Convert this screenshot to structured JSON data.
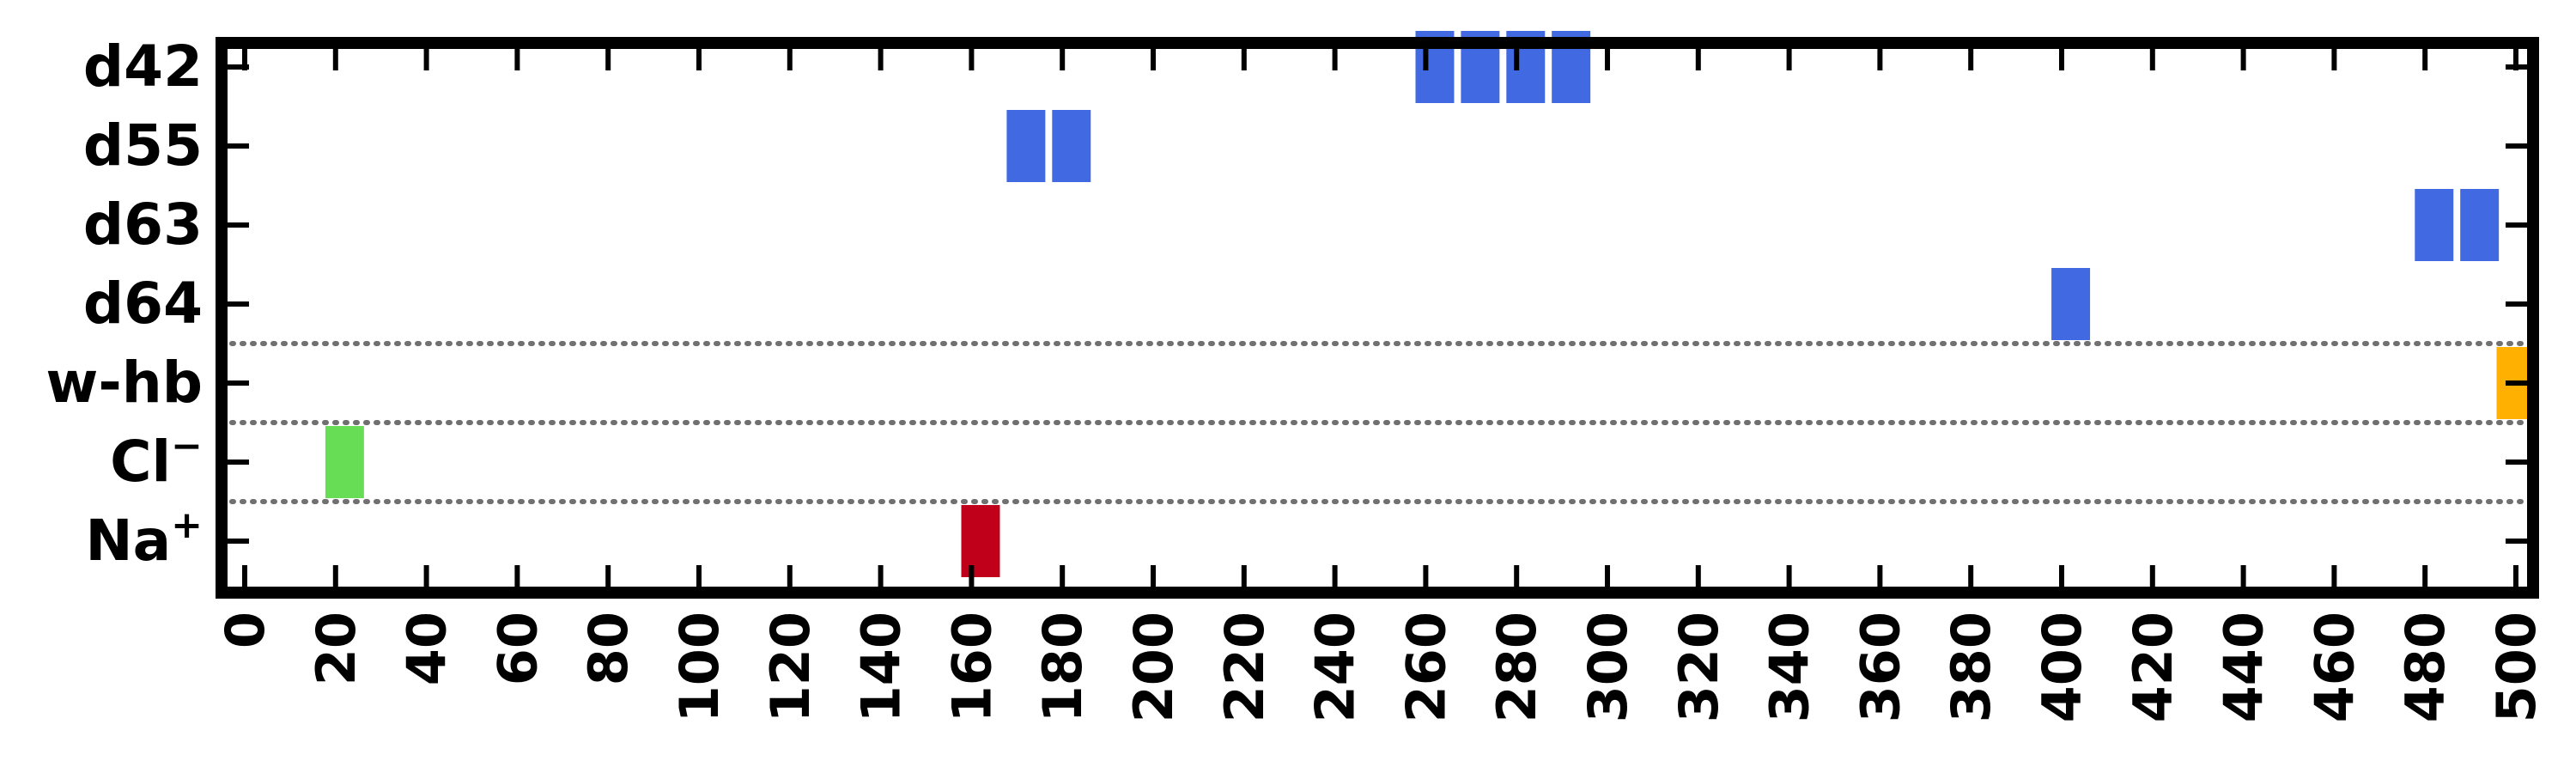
{
  "chart_data": {
    "type": "timeline",
    "title": "",
    "xlabel": "",
    "ylabel": "",
    "xlim": [
      0,
      500
    ],
    "xticks": [
      0,
      20,
      40,
      60,
      80,
      100,
      120,
      140,
      160,
      180,
      200,
      220,
      240,
      260,
      280,
      300,
      320,
      340,
      360,
      380,
      400,
      420,
      440,
      460,
      480,
      500
    ],
    "rows": [
      {
        "label": "d42",
        "sup": ""
      },
      {
        "label": "d55",
        "sup": ""
      },
      {
        "label": "d63",
        "sup": ""
      },
      {
        "label": "d64",
        "sup": ""
      },
      {
        "label": "w-hb",
        "sup": ""
      },
      {
        "label": "Cl",
        "sup": "−"
      },
      {
        "label": "Na",
        "sup": "+"
      }
    ],
    "separators_after_row": [
      3,
      4,
      5
    ],
    "bar_width": 8.5,
    "events": [
      {
        "row": 0,
        "x": 262,
        "color": "#4169e1"
      },
      {
        "row": 0,
        "x": 272,
        "color": "#4169e1"
      },
      {
        "row": 0,
        "x": 282,
        "color": "#4169e1"
      },
      {
        "row": 0,
        "x": 292,
        "color": "#4169e1"
      },
      {
        "row": 1,
        "x": 172,
        "color": "#4169e1"
      },
      {
        "row": 1,
        "x": 182,
        "color": "#4169e1"
      },
      {
        "row": 2,
        "x": 482,
        "color": "#4169e1"
      },
      {
        "row": 2,
        "x": 492,
        "color": "#4169e1"
      },
      {
        "row": 3,
        "x": 402,
        "color": "#4169e1"
      },
      {
        "row": 4,
        "x": 500,
        "color": "#ffb000"
      },
      {
        "row": 5,
        "x": 22,
        "color": "#66dd55"
      },
      {
        "row": 6,
        "x": 162,
        "color": "#c0001a"
      }
    ]
  }
}
